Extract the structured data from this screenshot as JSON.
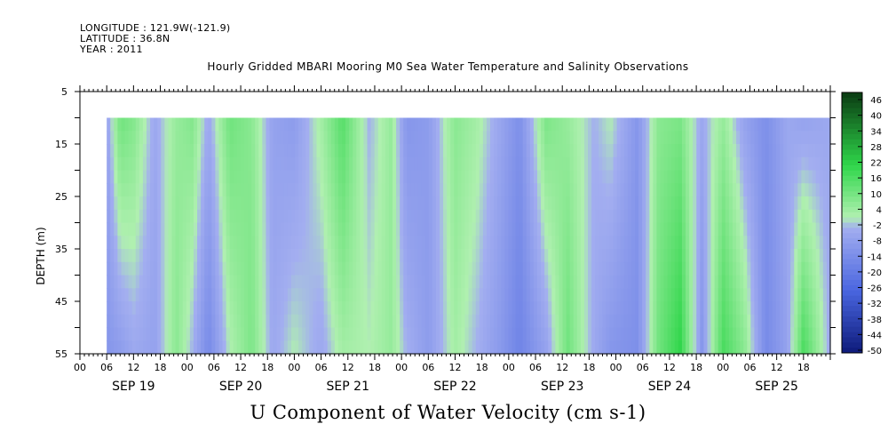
{
  "header": {
    "longitude": "LONGITUDE : 121.9W(-121.9)",
    "latitude": "LATITUDE : 36.8N",
    "year": "YEAR : 2011"
  },
  "chart_data": {
    "type": "heatmap",
    "title": "Hourly Gridded MBARI Mooring M0 Sea Water Temperature and Salinity Observations",
    "xlabel": "U Component of Water Velocity (cm s-1)",
    "ylabel": "DEPTH (m)",
    "ylim": [
      55,
      5
    ],
    "y_ticks": [
      5,
      15,
      25,
      35,
      45,
      55
    ],
    "x_hour_ticks": [
      "00",
      "06",
      "12",
      "18",
      "00",
      "06",
      "12",
      "18",
      "00",
      "06",
      "12",
      "18",
      "00",
      "06",
      "12",
      "18",
      "00",
      "06",
      "12",
      "18",
      "00",
      "06",
      "12",
      "18",
      "00",
      "06",
      "12",
      "18"
    ],
    "x_day_labels": [
      "SEP 19",
      "SEP 20",
      "SEP 21",
      "SEP 22",
      "SEP 23",
      "SEP 24",
      "SEP 25"
    ],
    "data_extent": {
      "start": "2011-09-19 06:00",
      "end": "2011-09-25 23:00",
      "depth_top": 10,
      "depth_bottom": 55
    },
    "colorbar_levels": [
      "46",
      "40",
      "34",
      "28",
      "22",
      "16",
      "10",
      "4",
      "-2",
      "-8",
      "-14",
      "-20",
      "-26",
      "-32",
      "-38",
      "-44",
      "-50"
    ],
    "colorbar_range": [
      -50,
      50
    ],
    "colors": {
      "negative_strong": "#0d1a7a",
      "negative": "#4a66e0",
      "negative_weak": "#a3aef0",
      "positive_weak": "#b0f0b0",
      "positive": "#2fd64a",
      "positive_strong": "#0a3a12"
    },
    "column_profile": [
      {
        "day": 19.25,
        "top": -6,
        "bottom": -10
      },
      {
        "day": 19.38,
        "top": 12,
        "bottom": -8
      },
      {
        "day": 19.5,
        "top": 9,
        "bottom": -4
      },
      {
        "day": 19.7,
        "top": -4,
        "bottom": -6
      },
      {
        "day": 19.9,
        "top": 6,
        "bottom": 8
      },
      {
        "day": 20.05,
        "top": 9,
        "bottom": -2
      },
      {
        "day": 20.2,
        "top": -4,
        "bottom": -14
      },
      {
        "day": 20.4,
        "top": 12,
        "bottom": 2
      },
      {
        "day": 20.6,
        "top": 8,
        "bottom": 10
      },
      {
        "day": 20.8,
        "top": -6,
        "bottom": -4
      },
      {
        "day": 21.0,
        "top": -8,
        "bottom": 2
      },
      {
        "day": 21.25,
        "top": 4,
        "bottom": -4
      },
      {
        "day": 21.45,
        "top": 16,
        "bottom": 4
      },
      {
        "day": 21.7,
        "top": -2,
        "bottom": 2
      },
      {
        "day": 21.9,
        "top": 6,
        "bottom": 6
      },
      {
        "day": 22.05,
        "top": -10,
        "bottom": -2
      },
      {
        "day": 22.25,
        "top": -8,
        "bottom": -8
      },
      {
        "day": 22.5,
        "top": 8,
        "bottom": 4
      },
      {
        "day": 22.7,
        "top": 4,
        "bottom": -2
      },
      {
        "day": 22.9,
        "top": -4,
        "bottom": -8
      },
      {
        "day": 23.1,
        "top": -12,
        "bottom": -16
      },
      {
        "day": 23.35,
        "top": 10,
        "bottom": -6
      },
      {
        "day": 23.55,
        "top": 6,
        "bottom": 12
      },
      {
        "day": 23.8,
        "top": -2,
        "bottom": -4
      },
      {
        "day": 23.95,
        "top": 2,
        "bottom": -10
      },
      {
        "day": 24.2,
        "top": -10,
        "bottom": -12
      },
      {
        "day": 24.4,
        "top": 8,
        "bottom": 12
      },
      {
        "day": 24.6,
        "top": 10,
        "bottom": 22
      },
      {
        "day": 24.8,
        "top": -4,
        "bottom": -10
      },
      {
        "day": 25.0,
        "top": 6,
        "bottom": 18
      },
      {
        "day": 25.2,
        "top": -6,
        "bottom": 8
      },
      {
        "day": 25.4,
        "top": -12,
        "bottom": -14
      },
      {
        "day": 25.6,
        "top": -4,
        "bottom": -6
      },
      {
        "day": 25.75,
        "top": -6,
        "bottom": 18
      },
      {
        "day": 25.98,
        "top": -4,
        "bottom": -2
      }
    ]
  }
}
